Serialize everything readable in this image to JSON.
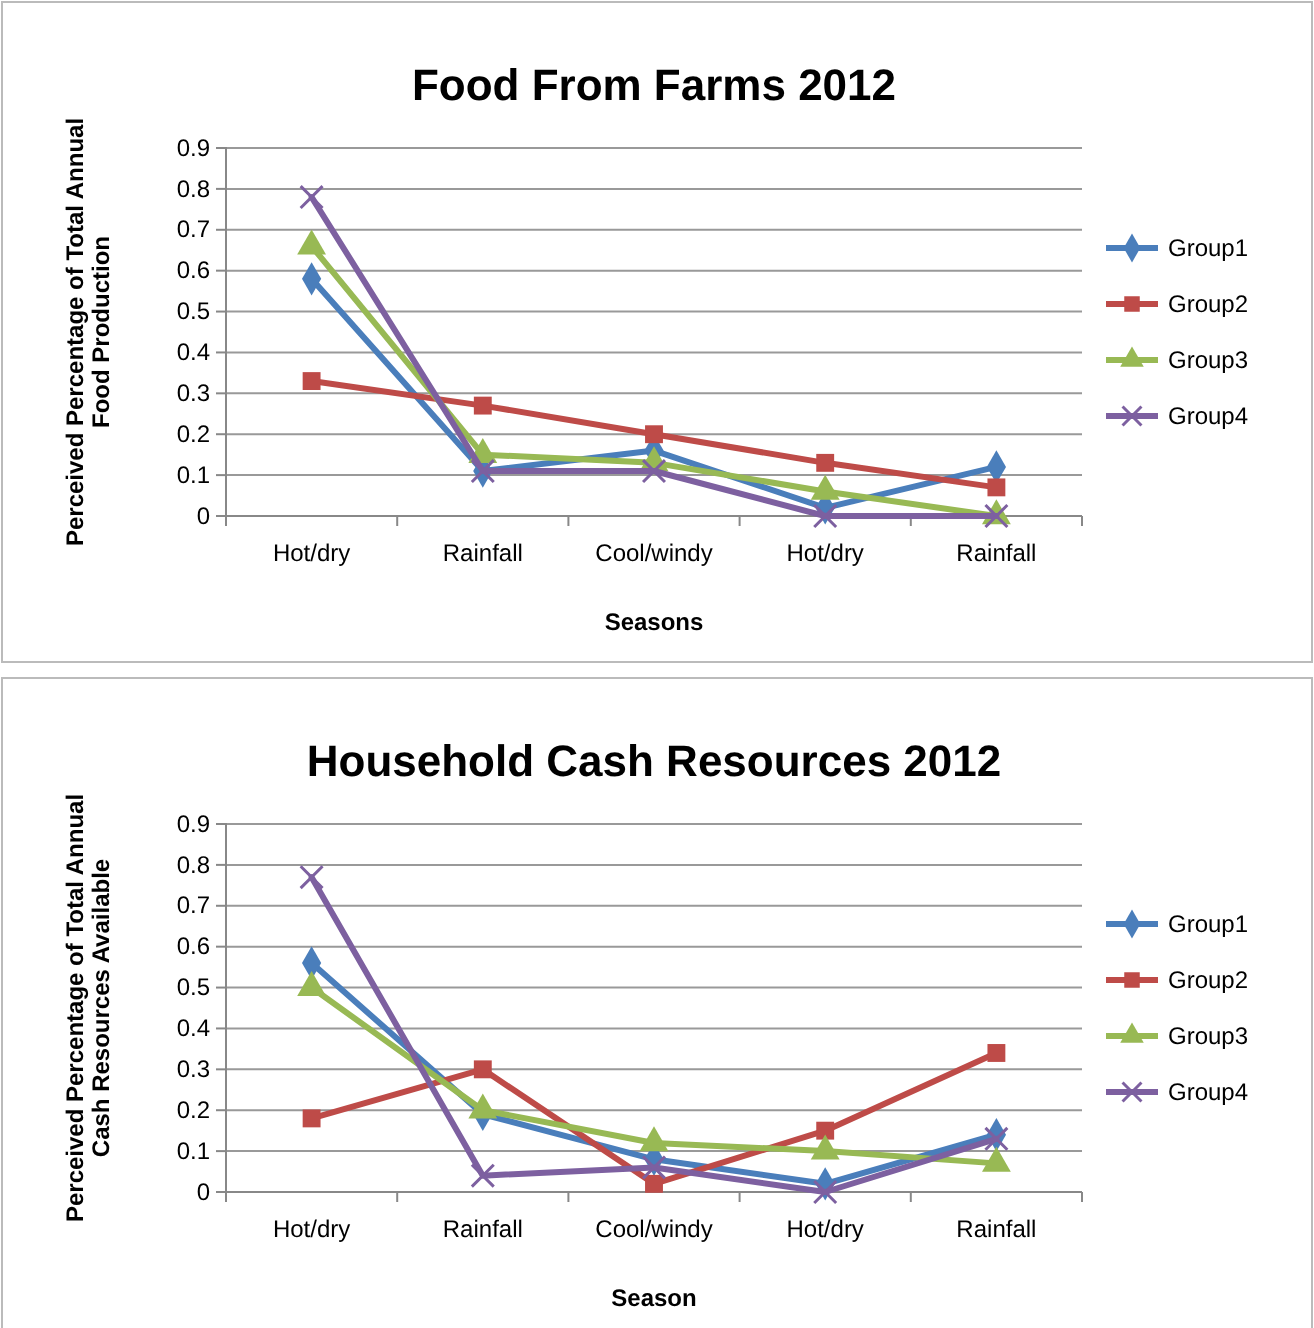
{
  "chart_data": [
    {
      "type": "line",
      "title": "Food From Farms 2012",
      "xlabel": "Seasons",
      "ylabel": "Perceived Percentage of Total Annual Food Production",
      "categories": [
        "Hot/dry",
        "Rainfall",
        "Cool/windy",
        "Hot/dry",
        "Rainfall"
      ],
      "ylim": [
        0,
        0.9
      ],
      "yticks": [
        0,
        0.1,
        0.2,
        0.3,
        0.4,
        0.5,
        0.6,
        0.7,
        0.8,
        0.9
      ],
      "grid": "y",
      "legend": "right",
      "series": [
        {
          "name": "Group1",
          "color": "#4a7ebb",
          "marker": "diamond",
          "values": [
            0.58,
            0.11,
            0.16,
            0.02,
            0.12
          ]
        },
        {
          "name": "Group2",
          "color": "#be4b48",
          "marker": "square",
          "values": [
            0.33,
            0.27,
            0.2,
            0.13,
            0.07
          ]
        },
        {
          "name": "Group3",
          "color": "#98b954",
          "marker": "triangle",
          "values": [
            0.66,
            0.15,
            0.13,
            0.06,
            0
          ]
        },
        {
          "name": "Group4",
          "color": "#7d60a0",
          "marker": "cross",
          "values": [
            0.78,
            0.11,
            0.11,
            0,
            0
          ]
        }
      ]
    },
    {
      "type": "line",
      "title": "Household Cash Resources 2012",
      "xlabel": "Season",
      "ylabel": "Perceived Percentage of Total Annual Cash Resources Available",
      "categories": [
        "Hot/dry",
        "Rainfall",
        "Cool/windy",
        "Hot/dry",
        "Rainfall"
      ],
      "ylim": [
        0,
        0.9
      ],
      "yticks": [
        0,
        0.1,
        0.2,
        0.3,
        0.4,
        0.5,
        0.6,
        0.7,
        0.8,
        0.9
      ],
      "grid": "y",
      "legend": "right",
      "series": [
        {
          "name": "Group1",
          "color": "#4a7ebb",
          "marker": "diamond",
          "values": [
            0.56,
            0.19,
            0.08,
            0.02,
            0.14
          ]
        },
        {
          "name": "Group2",
          "color": "#be4b48",
          "marker": "square",
          "values": [
            0.18,
            0.3,
            0.02,
            0.15,
            0.34
          ]
        },
        {
          "name": "Group3",
          "color": "#98b954",
          "marker": "triangle",
          "values": [
            0.5,
            0.2,
            0.12,
            0.1,
            0.07
          ]
        },
        {
          "name": "Group4",
          "color": "#7d60a0",
          "marker": "cross",
          "values": [
            0.77,
            0.04,
            0.06,
            0,
            0.13
          ]
        }
      ]
    }
  ]
}
